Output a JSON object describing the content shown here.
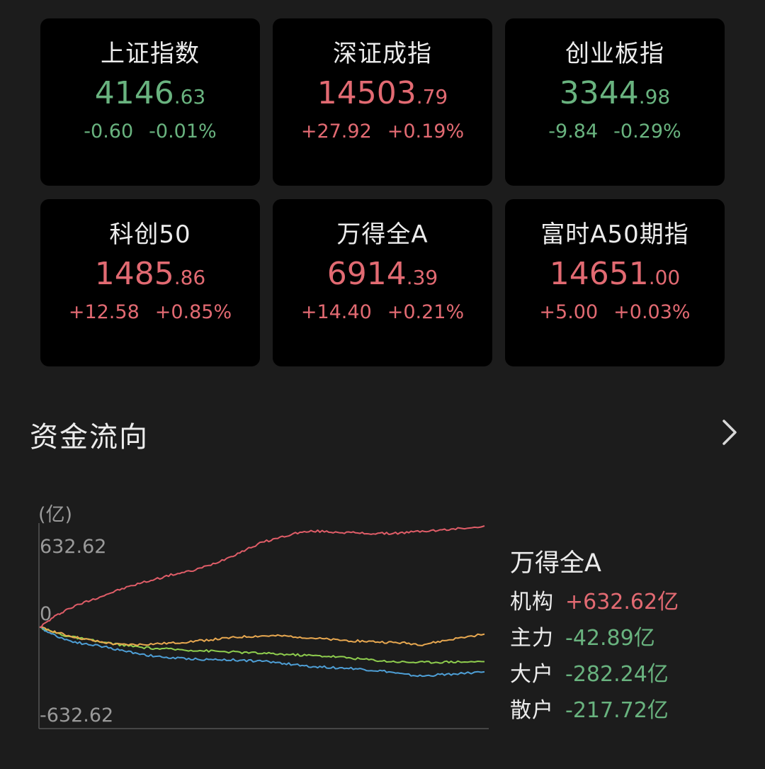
{
  "indices": [
    {
      "name": "上证指数",
      "int": "4146",
      "dec": ".63",
      "change": "-0.60",
      "pct": "-0.01%",
      "dir": "down"
    },
    {
      "name": "深证成指",
      "int": "14503",
      "dec": ".79",
      "change": "+27.92",
      "pct": "+0.19%",
      "dir": "up"
    },
    {
      "name": "创业板指",
      "int": "3344",
      "dec": ".98",
      "change": "-9.84",
      "pct": "-0.29%",
      "dir": "down"
    },
    {
      "name": "科创50",
      "int": "1485",
      "dec": ".86",
      "change": "+12.58",
      "pct": "+0.85%",
      "dir": "up"
    },
    {
      "name": "万得全A",
      "int": "6914",
      "dec": ".39",
      "change": "+14.40",
      "pct": "+0.21%",
      "dir": "up"
    },
    {
      "name": "富时A50期指",
      "int": "14651",
      "dec": ".00",
      "change": "+5.00",
      "pct": "+0.03%",
      "dir": "up"
    }
  ],
  "fund_flow": {
    "title": "资金流向",
    "unit": "(亿)",
    "y_max_label": "632.62",
    "y_zero_label": "0",
    "y_min_label": "-632.62",
    "legend_title": "万得全A",
    "legend": [
      {
        "label": "机构",
        "value": "+632.62亿",
        "dir": "up"
      },
      {
        "label": "主力",
        "value": "-42.89亿",
        "dir": "down"
      },
      {
        "label": "大户",
        "value": "-282.24亿",
        "dir": "down"
      },
      {
        "label": "散户",
        "value": "-217.72亿",
        "dir": "down"
      }
    ]
  },
  "colors": {
    "up": "#e26a72",
    "down": "#69b37f",
    "institution_line": "#e05d68",
    "main_line": "#e8a850",
    "large_line": "#4e9fd6",
    "retail_line": "#8fce4e"
  },
  "chart_data": {
    "type": "line",
    "ylim": [
      -632.62,
      632.62
    ],
    "x": [
      0,
      0.03,
      0.06,
      0.1,
      0.14,
      0.18,
      0.22,
      0.26,
      0.3,
      0.34,
      0.38,
      0.42,
      0.46,
      0.5,
      0.54,
      0.58,
      0.62,
      0.66,
      0.7,
      0.74,
      0.78,
      0.82,
      0.86,
      0.9,
      0.94,
      1.0
    ],
    "series": [
      {
        "name": "机构",
        "values": [
          0,
          60,
          110,
          155,
          195,
          235,
          270,
          300,
          330,
          350,
          385,
          430,
          480,
          530,
          560,
          590,
          600,
          595,
          590,
          585,
          585,
          590,
          600,
          605,
          615,
          632.62
        ]
      },
      {
        "name": "主力",
        "values": [
          0,
          -25,
          -50,
          -75,
          -95,
          -110,
          -110,
          -105,
          -100,
          -90,
          -80,
          -70,
          -60,
          -55,
          -55,
          -60,
          -70,
          -80,
          -85,
          -90,
          -95,
          -100,
          -110,
          -90,
          -70,
          -42.89
        ]
      },
      {
        "name": "大户",
        "values": [
          0,
          -45,
          -80,
          -105,
          -120,
          -145,
          -165,
          -185,
          -195,
          -200,
          -205,
          -205,
          -210,
          -215,
          -225,
          -240,
          -250,
          -255,
          -260,
          -270,
          -280,
          -300,
          -310,
          -300,
          -295,
          -282.24
        ]
      },
      {
        "name": "散户",
        "values": [
          0,
          -30,
          -55,
          -75,
          -95,
          -110,
          -125,
          -135,
          -140,
          -145,
          -150,
          -155,
          -160,
          -165,
          -170,
          -175,
          -180,
          -185,
          -195,
          -205,
          -215,
          -220,
          -222,
          -220,
          -218,
          -217.72
        ]
      }
    ]
  }
}
